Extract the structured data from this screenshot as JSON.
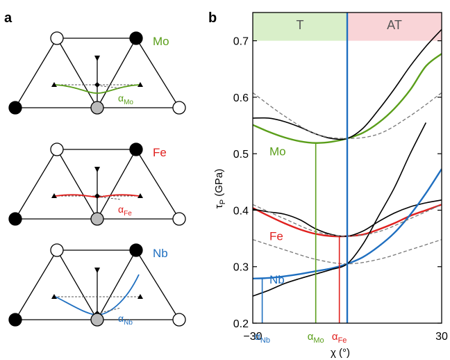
{
  "panel_a": {
    "label": "a",
    "diagrams": [
      {
        "element": "Mo",
        "alpha_label": "α",
        "alpha_sub": "Mo",
        "color": "#5a9e1a"
      },
      {
        "element": "Fe",
        "alpha_label": "α",
        "alpha_sub": "Fe",
        "color": "#e0201e"
      },
      {
        "element": "Nb",
        "alpha_label": "α",
        "alpha_sub": "Nb",
        "color": "#1f6fc0"
      }
    ]
  },
  "panel_b": {
    "label": "b",
    "region_T": "T",
    "region_AT": "AT",
    "region_T_color": "#d9efc9",
    "region_AT_color": "#f9d4d7",
    "ylabel_main": "τ",
    "ylabel_sub": "P",
    "ylabel_unit": " (GPa)",
    "xlabel": "χ (°)",
    "x_tick_left": "−30",
    "x_tick_right": "30",
    "alpha_ticks": [
      {
        "main": "α",
        "sub": "Nb",
        "x": -27,
        "color": "#1f6fc0"
      },
      {
        "main": "α",
        "sub": "Mo",
        "x": -10,
        "color": "#5a9e1a"
      },
      {
        "main": "α",
        "sub": "Fe",
        "x": -2.5,
        "color": "#e0201e"
      }
    ],
    "y_ticks": [
      "0.2",
      "0.3",
      "0.4",
      "0.5",
      "0.6",
      "0.7"
    ],
    "series_labels": [
      {
        "text": "Mo",
        "color": "#5a9e1a"
      },
      {
        "text": "Fe",
        "color": "#e0201e"
      },
      {
        "text": "Nb",
        "color": "#1f6fc0"
      }
    ]
  },
  "chart_data": {
    "type": "line",
    "xlim": [
      -30,
      30
    ],
    "ylim": [
      0.2,
      0.75
    ],
    "grid": false,
    "vertical_line_x": 0,
    "series": [
      {
        "name": "Mo",
        "color": "#5a9e1a",
        "style": "fit",
        "x": [
          -30,
          -25,
          -20,
          -15,
          -10,
          -5,
          0,
          5,
          10,
          15,
          20,
          25,
          30
        ],
        "y": [
          0.551,
          0.539,
          0.529,
          0.522,
          0.519,
          0.521,
          0.527,
          0.537,
          0.555,
          0.58,
          0.613,
          0.655,
          0.677
        ]
      },
      {
        "color": "#000000",
        "style": "data",
        "x": [
          -30,
          -25,
          -20,
          -15,
          -10,
          -5,
          0,
          5,
          10,
          15,
          20,
          25,
          30
        ],
        "y": [
          0.563,
          0.563,
          0.557,
          0.547,
          0.535,
          0.527,
          0.527,
          0.545,
          0.578,
          0.615,
          0.655,
          0.69,
          0.72
        ]
      },
      {
        "color": "#777777",
        "style": "dashed",
        "x": [
          -30,
          -20,
          -10,
          0,
          10,
          20,
          30
        ],
        "y": [
          0.608,
          0.567,
          0.535,
          0.527,
          0.535,
          0.567,
          0.608
        ]
      },
      {
        "name": "Fe",
        "color": "#e0201e",
        "style": "fit",
        "x": [
          -30,
          -25,
          -20,
          -15,
          -10,
          -5,
          0,
          5,
          10,
          15,
          20,
          25,
          30
        ],
        "y": [
          0.404,
          0.39,
          0.377,
          0.366,
          0.358,
          0.354,
          0.354,
          0.357,
          0.366,
          0.377,
          0.39,
          0.4,
          0.41
        ]
      },
      {
        "color": "#000000",
        "style": "data",
        "x": [
          -30,
          -25,
          -20,
          -15,
          -10,
          -5,
          0,
          5,
          10,
          15,
          20,
          25,
          30
        ],
        "y": [
          0.402,
          0.397,
          0.393,
          0.383,
          0.367,
          0.357,
          0.354,
          0.363,
          0.38,
          0.395,
          0.406,
          0.413,
          0.418
        ]
      },
      {
        "name": "Nb",
        "color": "#1f6fc0",
        "style": "fit",
        "x": [
          -30,
          -25,
          -20,
          -15,
          -10,
          -5,
          0,
          5,
          10,
          15,
          20,
          25,
          30
        ],
        "y": [
          0.279,
          0.28,
          0.283,
          0.287,
          0.292,
          0.297,
          0.305,
          0.317,
          0.336,
          0.36,
          0.392,
          0.43,
          0.473
        ]
      },
      {
        "color": "#000000",
        "style": "data",
        "x": [
          -30,
          -25,
          -20,
          -15,
          -10,
          -5,
          0,
          5,
          10,
          15,
          20,
          25
        ],
        "y": [
          0.248,
          0.258,
          0.27,
          0.279,
          0.287,
          0.295,
          0.305,
          0.34,
          0.39,
          0.44,
          0.5,
          0.555
        ]
      },
      {
        "color": "#777777",
        "style": "dashed",
        "x": [
          -30,
          -20,
          -10,
          0,
          10,
          20,
          30
        ],
        "y": [
          0.348,
          0.33,
          0.313,
          0.305,
          0.313,
          0.33,
          0.348
        ]
      },
      {
        "color": "#777777",
        "style": "dashed",
        "x": [
          -30,
          -20,
          -10,
          0,
          10,
          20,
          30
        ],
        "y": [
          0.41,
          0.385,
          0.362,
          0.354,
          0.362,
          0.385,
          0.41
        ]
      }
    ],
    "markers": [
      {
        "x": -27,
        "y": 0.279,
        "color": "#1f6fc0"
      },
      {
        "x": -10,
        "y": 0.519,
        "color": "#5a9e1a"
      },
      {
        "x": -2.5,
        "y": 0.354,
        "color": "#e0201e"
      }
    ]
  }
}
